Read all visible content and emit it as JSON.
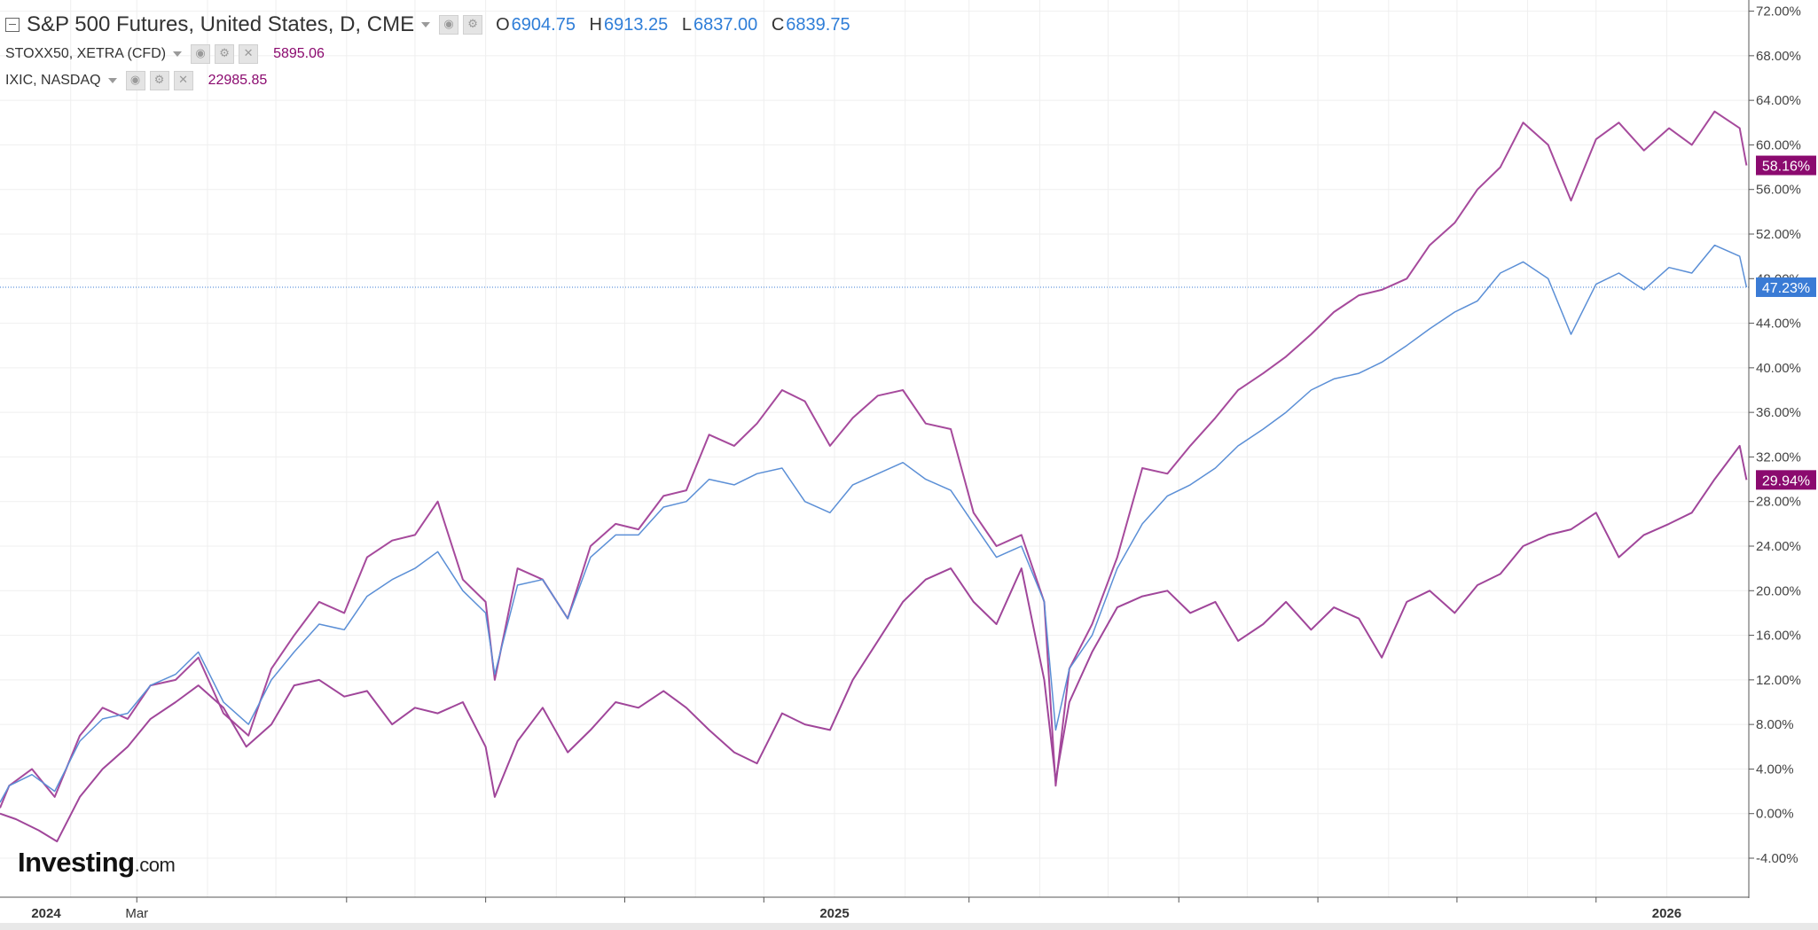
{
  "legend": {
    "main": {
      "title": "S&P 500 Futures, United States, D, CME",
      "open_label": "O",
      "open": "6904.75",
      "high_label": "H",
      "high": "6913.25",
      "low_label": "L",
      "low": "6837.00",
      "close_label": "C",
      "close": "6839.75"
    },
    "stoxx": {
      "title": "STOXX50, XETRA (CFD)",
      "value": "5895.06"
    },
    "ixic": {
      "title": "IXIC, NASDAQ",
      "value": "22985.85"
    }
  },
  "logo": {
    "text": "Investing",
    "suffix": ".com"
  },
  "colors": {
    "sp500": "#5b8fd6",
    "nasdaq": "#a64a9c",
    "stoxx": "#a0469a",
    "crosshair": "#3a7bd5",
    "badge_blue": "#3a7bd5",
    "badge_purple": "#8b0a6f",
    "grid": "#efefef"
  },
  "chart_data": {
    "type": "line",
    "title": "S&P 500 Futures, United States, D, CME",
    "x_ticks": [
      "2024",
      "Mar",
      "2025",
      "2026"
    ],
    "y_ticks": [
      "-4.00%",
      "0.00%",
      "4.00%",
      "8.00%",
      "12.00%",
      "16.00%",
      "20.00%",
      "24.00%",
      "28.00%",
      "32.00%",
      "36.00%",
      "40.00%",
      "44.00%",
      "48.00%",
      "52.00%",
      "56.00%",
      "60.00%",
      "64.00%",
      "68.00%",
      "72.00%"
    ],
    "ylim": [
      -7.5,
      73
    ],
    "xlim": [
      "2024-01-01",
      "2026-02-06"
    ],
    "grid": true,
    "crosshair_value": 47.23,
    "series": [
      {
        "name": "IXIC, NASDAQ",
        "last_label": "58.16%",
        "x": [
          "2024-01-01",
          "2024-01-05",
          "2024-01-15",
          "2024-01-25",
          "2024-02-05",
          "2024-02-15",
          "2024-02-26",
          "2024-03-07",
          "2024-03-18",
          "2024-03-28",
          "2024-04-08",
          "2024-04-19",
          "2024-04-29",
          "2024-05-09",
          "2024-05-20",
          "2024-05-31",
          "2024-06-10",
          "2024-06-21",
          "2024-07-01",
          "2024-07-11",
          "2024-07-22",
          "2024-08-01",
          "2024-08-05",
          "2024-08-15",
          "2024-08-26",
          "2024-09-06",
          "2024-09-16",
          "2024-09-27",
          "2024-10-07",
          "2024-10-18",
          "2024-10-28",
          "2024-11-07",
          "2024-11-18",
          "2024-11-28",
          "2024-12-09",
          "2024-12-19",
          "2024-12-30",
          "2025-01-09",
          "2025-01-20",
          "2025-01-31",
          "2025-02-10",
          "2025-02-21",
          "2025-03-03",
          "2025-03-13",
          "2025-03-24",
          "2025-04-03",
          "2025-04-08",
          "2025-04-14",
          "2025-04-24",
          "2025-05-05",
          "2025-05-16",
          "2025-05-27",
          "2025-06-06",
          "2025-06-17",
          "2025-06-27",
          "2025-07-08",
          "2025-07-18",
          "2025-07-29",
          "2025-08-08",
          "2025-08-19",
          "2025-08-29",
          "2025-09-09",
          "2025-09-19",
          "2025-09-30",
          "2025-10-10",
          "2025-10-20",
          "2025-10-30",
          "2025-11-10",
          "2025-11-20",
          "2025-12-01",
          "2025-12-11",
          "2025-12-22",
          "2026-01-02",
          "2026-01-12",
          "2026-01-22",
          "2026-02-02",
          "2026-02-05"
        ],
        "y": [
          0.5,
          2.5,
          4.0,
          1.5,
          7.0,
          9.5,
          8.5,
          11.5,
          12.0,
          14.0,
          9.0,
          7.0,
          13.0,
          16.0,
          19.0,
          18.0,
          23.0,
          24.5,
          25.0,
          28.0,
          21.0,
          19.0,
          12.0,
          22.0,
          21.0,
          17.5,
          24.0,
          26.0,
          25.5,
          28.5,
          29.0,
          34.0,
          33.0,
          35.0,
          38.0,
          37.0,
          33.0,
          35.5,
          37.5,
          38.0,
          35.0,
          34.5,
          27.0,
          24.0,
          25.0,
          19.0,
          2.5,
          13.0,
          17.0,
          23.0,
          31.0,
          30.5,
          33.0,
          35.5,
          38.0,
          39.5,
          41.0,
          43.0,
          45.0,
          46.5,
          47.0,
          48.0,
          51.0,
          53.0,
          56.0,
          58.0,
          62.0,
          60.0,
          55.0,
          60.5,
          62.0,
          59.5,
          61.5,
          60.0,
          63.0,
          61.5,
          58.16
        ]
      },
      {
        "name": "S&P 500 Futures",
        "last_label": "47.23%",
        "x": [
          "2024-01-01",
          "2024-01-05",
          "2024-01-15",
          "2024-01-25",
          "2024-02-05",
          "2024-02-15",
          "2024-02-26",
          "2024-03-07",
          "2024-03-18",
          "2024-03-28",
          "2024-04-08",
          "2024-04-19",
          "2024-04-29",
          "2024-05-09",
          "2024-05-20",
          "2024-05-31",
          "2024-06-10",
          "2024-06-21",
          "2024-07-01",
          "2024-07-11",
          "2024-07-22",
          "2024-08-01",
          "2024-08-05",
          "2024-08-15",
          "2024-08-26",
          "2024-09-06",
          "2024-09-16",
          "2024-09-27",
          "2024-10-07",
          "2024-10-18",
          "2024-10-28",
          "2024-11-07",
          "2024-11-18",
          "2024-11-28",
          "2024-12-09",
          "2024-12-19",
          "2024-12-30",
          "2025-01-09",
          "2025-01-20",
          "2025-01-31",
          "2025-02-10",
          "2025-02-21",
          "2025-03-03",
          "2025-03-13",
          "2025-03-24",
          "2025-04-03",
          "2025-04-08",
          "2025-04-14",
          "2025-04-24",
          "2025-05-05",
          "2025-05-16",
          "2025-05-27",
          "2025-06-06",
          "2025-06-17",
          "2025-06-27",
          "2025-07-08",
          "2025-07-18",
          "2025-07-29",
          "2025-08-08",
          "2025-08-19",
          "2025-08-29",
          "2025-09-09",
          "2025-09-19",
          "2025-09-30",
          "2025-10-10",
          "2025-10-20",
          "2025-10-30",
          "2025-11-10",
          "2025-11-20",
          "2025-12-01",
          "2025-12-11",
          "2025-12-22",
          "2026-01-02",
          "2026-01-12",
          "2026-01-22",
          "2026-02-02",
          "2026-02-05"
        ],
        "y": [
          1.0,
          2.5,
          3.5,
          2.0,
          6.5,
          8.5,
          9.0,
          11.5,
          12.5,
          14.5,
          10.0,
          8.0,
          12.0,
          14.5,
          17.0,
          16.5,
          19.5,
          21.0,
          22.0,
          23.5,
          20.0,
          18.0,
          12.5,
          20.5,
          21.0,
          17.5,
          23.0,
          25.0,
          25.0,
          27.5,
          28.0,
          30.0,
          29.5,
          30.5,
          31.0,
          28.0,
          27.0,
          29.5,
          30.5,
          31.5,
          30.0,
          29.0,
          26.0,
          23.0,
          24.0,
          19.0,
          7.5,
          13.0,
          16.0,
          22.0,
          26.0,
          28.5,
          29.5,
          31.0,
          33.0,
          34.5,
          36.0,
          38.0,
          39.0,
          39.5,
          40.5,
          42.0,
          43.5,
          45.0,
          46.0,
          48.5,
          49.5,
          48.0,
          43.0,
          47.5,
          48.5,
          47.0,
          49.0,
          48.5,
          51.0,
          50.0,
          47.23
        ]
      },
      {
        "name": "STOXX50, XETRA (CFD)",
        "last_label": "29.94%",
        "x": [
          "2024-01-01",
          "2024-01-08",
          "2024-01-18",
          "2024-01-26",
          "2024-02-05",
          "2024-02-15",
          "2024-02-26",
          "2024-03-07",
          "2024-03-18",
          "2024-03-28",
          "2024-04-08",
          "2024-04-18",
          "2024-04-29",
          "2024-05-09",
          "2024-05-20",
          "2024-05-31",
          "2024-06-10",
          "2024-06-21",
          "2024-07-01",
          "2024-07-11",
          "2024-07-22",
          "2024-08-01",
          "2024-08-05",
          "2024-08-15",
          "2024-08-26",
          "2024-09-06",
          "2024-09-16",
          "2024-09-27",
          "2024-10-07",
          "2024-10-18",
          "2024-10-28",
          "2024-11-07",
          "2024-11-18",
          "2024-11-28",
          "2024-12-09",
          "2024-12-19",
          "2024-12-30",
          "2025-01-09",
          "2025-01-20",
          "2025-01-31",
          "2025-02-10",
          "2025-02-21",
          "2025-03-03",
          "2025-03-13",
          "2025-03-24",
          "2025-04-03",
          "2025-04-08",
          "2025-04-14",
          "2025-04-24",
          "2025-05-05",
          "2025-05-16",
          "2025-05-27",
          "2025-06-06",
          "2025-06-17",
          "2025-06-27",
          "2025-07-08",
          "2025-07-18",
          "2025-07-29",
          "2025-08-08",
          "2025-08-19",
          "2025-08-29",
          "2025-09-09",
          "2025-09-19",
          "2025-09-30",
          "2025-10-10",
          "2025-10-20",
          "2025-10-30",
          "2025-11-10",
          "2025-11-20",
          "2025-12-01",
          "2025-12-11",
          "2025-12-22",
          "2026-01-02",
          "2026-01-12",
          "2026-01-22",
          "2026-02-02",
          "2026-02-05"
        ],
        "y": [
          0.0,
          -0.5,
          -1.5,
          -2.5,
          1.5,
          4.0,
          6.0,
          8.5,
          10.0,
          11.5,
          9.5,
          6.0,
          8.0,
          11.5,
          12.0,
          10.5,
          11.0,
          8.0,
          9.5,
          9.0,
          10.0,
          6.0,
          1.5,
          6.5,
          9.5,
          5.5,
          7.5,
          10.0,
          9.5,
          11.0,
          9.5,
          7.5,
          5.5,
          4.5,
          9.0,
          8.0,
          7.5,
          12.0,
          15.5,
          19.0,
          21.0,
          22.0,
          19.0,
          17.0,
          22.0,
          12.0,
          3.0,
          10.0,
          14.5,
          18.5,
          19.5,
          20.0,
          18.0,
          19.0,
          15.5,
          17.0,
          19.0,
          16.5,
          18.5,
          17.5,
          14.0,
          19.0,
          20.0,
          18.0,
          20.5,
          21.5,
          24.0,
          25.0,
          25.5,
          27.0,
          23.0,
          25.0,
          26.0,
          27.0,
          30.0,
          33.0,
          29.94
        ]
      }
    ]
  }
}
